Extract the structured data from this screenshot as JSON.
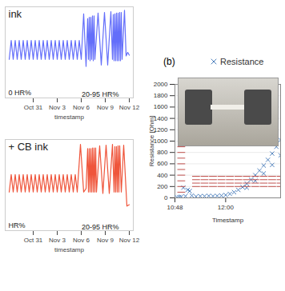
{
  "chart_data": [
    {
      "type": "line",
      "title": "ink",
      "xlabel": "timestamp",
      "color": "#636efa",
      "annotations": [
        "0 HR%",
        "20-95 HR%"
      ],
      "xlim": [
        -3.5,
        12.5
      ],
      "xticks": [
        {
          "value": 0,
          "label": "Oct 31"
        },
        {
          "value": 3,
          "label": "Nov 3"
        },
        {
          "value": 6,
          "label": "Nov 6"
        },
        {
          "value": 9,
          "label": "Nov 9"
        },
        {
          "value": 12,
          "label": "Nov 12"
        }
      ],
      "ylim": [
        -25,
        105
      ],
      "tick_labels": "x",
      "x": [
        -3,
        -2.75,
        -2.5,
        -2.25,
        -2,
        -1.75,
        -1.5,
        -1.25,
        -1,
        -0.75,
        -0.5,
        -0.25,
        0,
        0.25,
        0.5,
        0.75,
        1,
        1.25,
        1.5,
        1.75,
        2,
        2.25,
        2.5,
        2.75,
        3,
        3.25,
        3.5,
        3.75,
        4,
        4.25,
        4.5,
        4.75,
        5,
        5.25,
        5.5,
        5.75,
        6,
        6.3,
        6.6,
        6.8,
        6.9,
        7.0,
        7.1,
        7.2,
        7.3,
        7.4,
        7.5,
        7.6,
        7.7,
        8.1,
        8.5,
        8.9,
        9.3,
        9.7,
        9.9,
        10.0,
        10.1,
        10.2,
        10.3,
        10.4,
        10.5,
        10.6,
        10.7,
        10.8,
        10.9,
        11.0,
        11.1,
        11.4,
        11.6,
        11.8,
        12.0
      ],
      "values": [
        30,
        57,
        30,
        57,
        30,
        57,
        30,
        57,
        30,
        57,
        30,
        57,
        30,
        57,
        30,
        57,
        30,
        57,
        30,
        57,
        30,
        57,
        30,
        57,
        30,
        57,
        30,
        57,
        30,
        57,
        30,
        57,
        30,
        57,
        30,
        57,
        30,
        95,
        20,
        88,
        30,
        90,
        28,
        90,
        30,
        92,
        28,
        92,
        30,
        96,
        22,
        97,
        22,
        98,
        30,
        94,
        28,
        95,
        28,
        96,
        28,
        96,
        28,
        97,
        28,
        97,
        30,
        100,
        35,
        40,
        36
      ]
    },
    {
      "type": "line",
      "title": "+ CB ink",
      "xlabel": "timestamp",
      "color": "#ef553b",
      "annotations": [
        "HR%",
        "20-95 HR%"
      ],
      "xlim": [
        -3.5,
        12.5
      ],
      "xticks": [
        {
          "value": 0,
          "label": "Oct 31"
        },
        {
          "value": 3,
          "label": "Nov 3"
        },
        {
          "value": 6,
          "label": "Nov 6"
        },
        {
          "value": 9,
          "label": "Nov 9"
        },
        {
          "value": 12,
          "label": "Nov 12"
        }
      ],
      "ylim": [
        -25,
        105
      ],
      "tick_labels": "x",
      "x": [
        -3,
        -2.75,
        -2.5,
        -2.25,
        -2,
        -1.75,
        -1.5,
        -1.25,
        -1,
        -0.75,
        -0.5,
        -0.25,
        0,
        0.25,
        0.5,
        0.75,
        1,
        1.25,
        1.5,
        1.75,
        2,
        2.25,
        2.5,
        2.75,
        3,
        3.25,
        3.5,
        3.75,
        4,
        4.25,
        4.5,
        4.75,
        5,
        5.25,
        5.5,
        5.9,
        6.3,
        6.6,
        6.8,
        6.9,
        7.0,
        7.1,
        7.2,
        7.3,
        7.4,
        7.5,
        7.6,
        7.7,
        7.8,
        7.9,
        8.3,
        8.7,
        9.1,
        9.5,
        9.9,
        10.1,
        10.2,
        10.3,
        10.4,
        10.5,
        10.6,
        10.7,
        10.8,
        11.0,
        11.3,
        11.7,
        12.0
      ],
      "values": [
        30,
        55,
        30,
        55,
        30,
        55,
        30,
        55,
        30,
        55,
        30,
        55,
        30,
        55,
        30,
        55,
        30,
        55,
        30,
        55,
        30,
        55,
        30,
        55,
        30,
        55,
        30,
        55,
        30,
        55,
        30,
        55,
        30,
        55,
        30,
        98,
        30,
        35,
        92,
        30,
        92,
        30,
        92,
        30,
        93,
        30,
        93,
        30,
        93,
        30,
        96,
        28,
        97,
        28,
        98,
        30,
        95,
        30,
        95,
        30,
        96,
        30,
        96,
        30,
        97,
        10,
        12
      ]
    },
    {
      "type": "scatter",
      "panel_label": "(b)",
      "xlabel": "Timestamp",
      "ylabel": "Resistance [Ohm]",
      "xlim": [
        10.8,
        13.3
      ],
      "xticks": [
        {
          "value": 10.8,
          "label": "10:48"
        },
        {
          "value": 12,
          "label": "12:00"
        }
      ],
      "ylim": [
        0,
        2000
      ],
      "yticks": [
        0,
        200,
        400,
        600,
        800,
        1000,
        1200,
        1400,
        1600,
        1800,
        2000
      ],
      "grid": true,
      "legend": "top",
      "series": [
        {
          "name": "Resistance",
          "color": "#4f81bd",
          "marker": "x",
          "x": [
            10.85,
            10.9,
            10.95,
            11.0,
            11.05,
            11.1,
            11.15,
            11.2,
            11.3,
            11.4,
            11.5,
            11.6,
            11.7,
            11.8,
            11.9,
            12.0,
            12.1,
            12.2,
            12.3,
            12.4,
            12.5,
            12.6,
            12.7,
            12.8,
            12.9,
            13.0,
            13.1,
            13.2,
            13.3,
            12.5,
            12.7,
            12.9,
            13.1,
            13.3
          ],
          "values": [
            10,
            15,
            20,
            180,
            30,
            140,
            120,
            40,
            25,
            30,
            30,
            35,
            30,
            35,
            40,
            50,
            70,
            100,
            140,
            190,
            250,
            320,
            400,
            480,
            570,
            670,
            780,
            900,
            1020,
            180,
            300,
            430,
            580,
            750
          ]
        },
        {
          "color": "#c0504d",
          "marker": "dash",
          "x": [
            10.95,
            10.95,
            10.95,
            10.95,
            10.95,
            10.95,
            10.95,
            10.95,
            10.95,
            11.3,
            11.5,
            11.7,
            11.9,
            12.1,
            12.3,
            12.5,
            12.7,
            12.9,
            13.1,
            13.3,
            11.3,
            11.5,
            11.7,
            11.9,
            12.1,
            12.3,
            12.5,
            12.7,
            12.9,
            13.1,
            13.3,
            11.3,
            11.5,
            11.7,
            11.9,
            12.1,
            12.3,
            12.5,
            12.7,
            12.9,
            13.1,
            13.3,
            11.3,
            11.5,
            11.7,
            11.9,
            12.1,
            12.3,
            12.5,
            12.7,
            12.9,
            13.1,
            13.3
          ],
          "values": [
            100,
            200,
            300,
            400,
            500,
            600,
            700,
            800,
            900,
            380,
            380,
            380,
            380,
            380,
            380,
            380,
            380,
            380,
            380,
            380,
            320,
            320,
            320,
            320,
            320,
            320,
            320,
            320,
            320,
            320,
            320,
            260,
            260,
            260,
            260,
            260,
            260,
            260,
            260,
            260,
            260,
            260,
            200,
            200,
            200,
            200,
            200,
            200,
            200,
            200,
            200,
            200,
            200
          ]
        }
      ]
    }
  ]
}
